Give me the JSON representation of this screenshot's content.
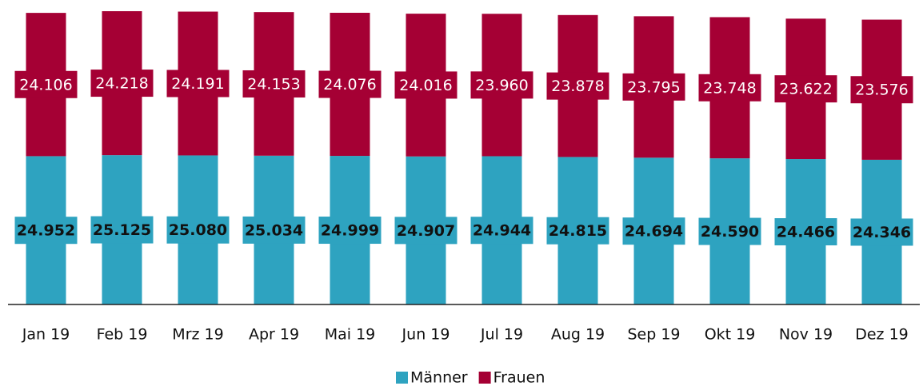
{
  "chart_data": {
    "type": "stacked_bar",
    "categories": [
      "Jan 19",
      "Feb 19",
      "Mrz 19",
      "Apr 19",
      "Mai 19",
      "Jun 19",
      "Jul 19",
      "Aug 19",
      "Sep 19",
      "Okt 19",
      "Nov 19",
      "Dez 19"
    ],
    "series": [
      {
        "name": "Männer",
        "color": "#2ea3c0",
        "values": [
          24952,
          25125,
          25080,
          25034,
          24999,
          24907,
          24944,
          24815,
          24694,
          24590,
          24466,
          24346
        ],
        "value_labels": [
          "24.952",
          "25.125",
          "25.080",
          "25.034",
          "24.999",
          "24.907",
          "24.944",
          "24.815",
          "24.694",
          "24.590",
          "24.466",
          "24.346"
        ]
      },
      {
        "name": "Frauen",
        "color": "#a50034",
        "values": [
          24106,
          24218,
          24191,
          24153,
          24076,
          24016,
          23960,
          23878,
          23795,
          23748,
          23622,
          23576
        ],
        "value_labels": [
          "24.106",
          "24.218",
          "24.191",
          "24.153",
          "24.076",
          "24.016",
          "23.960",
          "23.878",
          "23.795",
          "23.748",
          "23.622",
          "23.576"
        ]
      }
    ],
    "legend": "bottom"
  }
}
